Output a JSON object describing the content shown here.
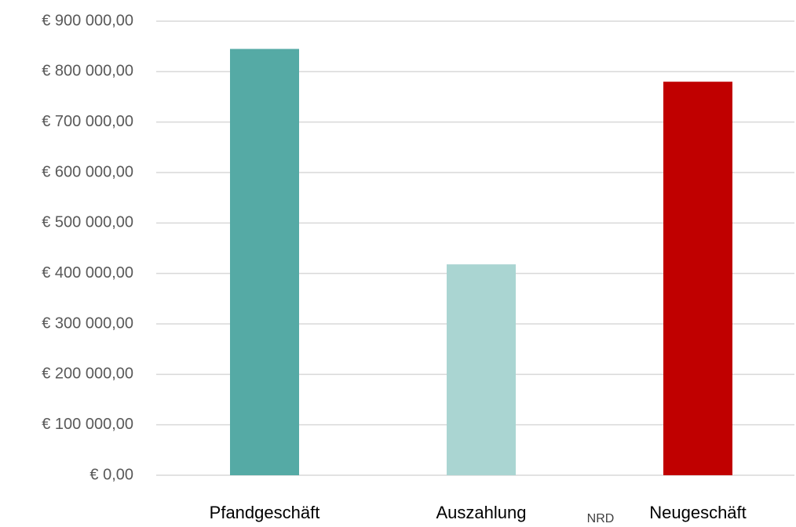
{
  "chart_data": {
    "type": "bar",
    "x_label": "NRD",
    "categories": [
      "Pfandgeschäft",
      "Auszahlung",
      "Neugeschäft"
    ],
    "values": [
      845000,
      418000,
      780000
    ],
    "colors": [
      "#55aaa5",
      "#aad5d2",
      "#c00000"
    ],
    "ylim": [
      0,
      900000
    ],
    "yticks": [
      {
        "value": 0,
        "label": "€ 0,00"
      },
      {
        "value": 100000,
        "label": "€ 100 000,00"
      },
      {
        "value": 200000,
        "label": "€ 200 000,00"
      },
      {
        "value": 300000,
        "label": "€ 300 000,00"
      },
      {
        "value": 400000,
        "label": "€ 400 000,00"
      },
      {
        "value": 500000,
        "label": "€ 500 000,00"
      },
      {
        "value": 600000,
        "label": "€ 600 000,00"
      },
      {
        "value": 700000,
        "label": "€ 700 000,00"
      },
      {
        "value": 800000,
        "label": "€ 800 000,00"
      },
      {
        "value": 900000,
        "label": "€ 900 000,00"
      }
    ],
    "grid": true
  }
}
